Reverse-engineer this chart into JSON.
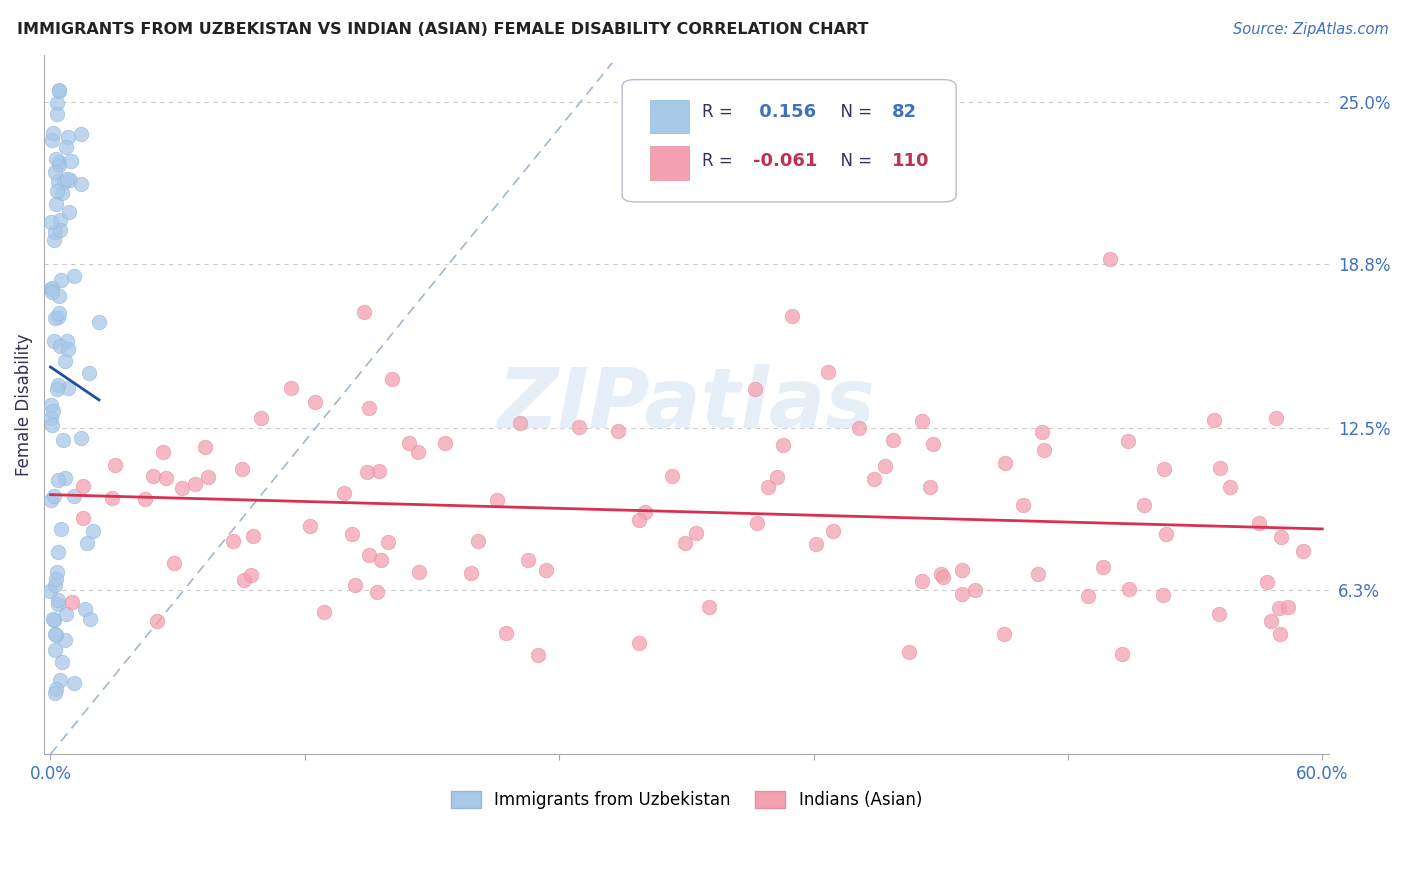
{
  "title": "IMMIGRANTS FROM UZBEKISTAN VS INDIAN (ASIAN) FEMALE DISABILITY CORRELATION CHART",
  "source": "Source: ZipAtlas.com",
  "ylabel": "Female Disability",
  "xlim": [
    0.0,
    0.6
  ],
  "ylim": [
    0.0,
    0.265
  ],
  "yticks": [
    0.0,
    0.063,
    0.125,
    0.188,
    0.25
  ],
  "ytick_labels": [
    "",
    "6.3%",
    "12.5%",
    "18.8%",
    "25.0%"
  ],
  "blue_color": "#a8c8e8",
  "blue_edge_color": "#90b8d8",
  "pink_color": "#f4a0b0",
  "pink_edge_color": "#e490a0",
  "blue_line_color": "#2050a0",
  "pink_line_color": "#d83050",
  "diag_line_color": "#a0b8d0",
  "watermark": "ZIPatlas",
  "blue_r": 0.156,
  "blue_n": 82,
  "pink_r": -0.061,
  "pink_n": 110,
  "legend_box_color": "#e8e8f0",
  "text_dark": "#333355",
  "text_blue": "#4070c0",
  "text_pink": "#c03050"
}
